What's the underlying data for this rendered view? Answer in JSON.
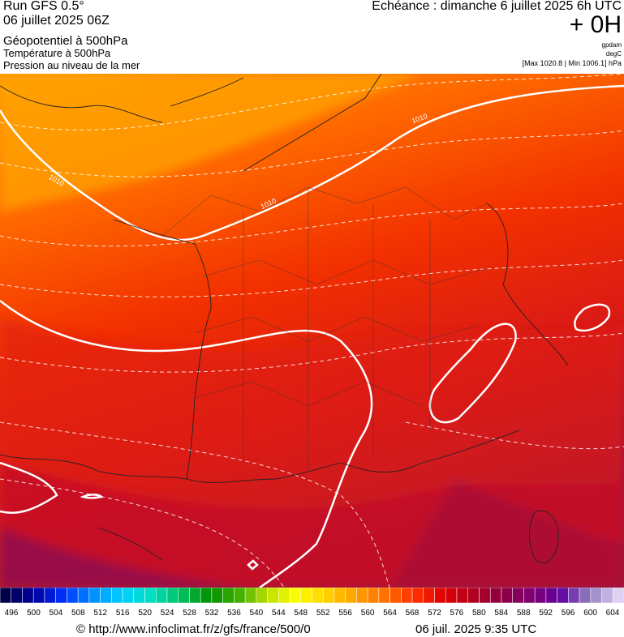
{
  "header": {
    "run": "Run GFS 0.5°",
    "date": "06 juillet 2025 06Z",
    "layer1": "Géopotentiel à 500hPa",
    "layer2": "Température à 500hPa",
    "layer3": "Pression au niveau de la mer",
    "echeance": "Echéance : dimanche 6 juillet 2025 6h UTC",
    "offset": "+ 0H",
    "unit1": "gpdam",
    "unit2": "degC",
    "range": "[Max 1020.8 | Min 1006.1] hPa"
  },
  "map": {
    "contour_labels": [
      "1010",
      "1010",
      "1010"
    ]
  },
  "legend": {
    "labels": [
      496,
      500,
      504,
      508,
      512,
      516,
      520,
      524,
      528,
      532,
      536,
      540,
      544,
      548,
      552,
      556,
      560,
      564,
      568,
      572,
      576,
      580,
      584,
      588,
      592,
      596,
      600,
      604
    ]
  },
  "footer": {
    "url": "© http://www.infoclimat.fr/z/gfs/france/500/0",
    "timestamp": "06 juil. 2025  9:35 UTC"
  }
}
